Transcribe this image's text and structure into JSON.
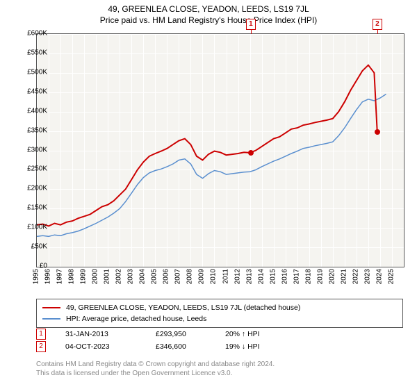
{
  "title_line1": "49, GREENLEA CLOSE, YEADON, LEEDS, LS19 7JL",
  "title_line2": "Price paid vs. HM Land Registry's House Price Index (HPI)",
  "chart": {
    "background": "#f5f4f0",
    "grid_color": "#ffffff",
    "border_color": "#555555",
    "ylim": [
      0,
      600000
    ],
    "ytick_step": 50000,
    "yticks": [
      "£0",
      "£50K",
      "£100K",
      "£150K",
      "£200K",
      "£250K",
      "£300K",
      "£350K",
      "£400K",
      "£450K",
      "£500K",
      "£550K",
      "£600K"
    ],
    "xlim": [
      1995,
      2026
    ],
    "xticks": [
      "1995",
      "1996",
      "1997",
      "1998",
      "1999",
      "2000",
      "2001",
      "2002",
      "2003",
      "2004",
      "2005",
      "2006",
      "2007",
      "2008",
      "2009",
      "2010",
      "2011",
      "2012",
      "2013",
      "2014",
      "2015",
      "2016",
      "2017",
      "2018",
      "2019",
      "2020",
      "2021",
      "2022",
      "2023",
      "2024",
      "2025"
    ],
    "series": {
      "red": {
        "color": "#cc0000",
        "width": 2,
        "points": [
          [
            1995.0,
            108000
          ],
          [
            1995.5,
            110000
          ],
          [
            1996.0,
            105000
          ],
          [
            1996.5,
            112000
          ],
          [
            1997.0,
            108000
          ],
          [
            1997.5,
            115000
          ],
          [
            1998.0,
            118000
          ],
          [
            1998.5,
            125000
          ],
          [
            1999.0,
            130000
          ],
          [
            1999.5,
            135000
          ],
          [
            2000.0,
            145000
          ],
          [
            2000.5,
            155000
          ],
          [
            2001.0,
            160000
          ],
          [
            2001.5,
            170000
          ],
          [
            2002.0,
            185000
          ],
          [
            2002.5,
            200000
          ],
          [
            2003.0,
            225000
          ],
          [
            2003.5,
            250000
          ],
          [
            2004.0,
            270000
          ],
          [
            2004.5,
            285000
          ],
          [
            2005.0,
            292000
          ],
          [
            2005.5,
            298000
          ],
          [
            2006.0,
            305000
          ],
          [
            2006.5,
            315000
          ],
          [
            2007.0,
            325000
          ],
          [
            2007.5,
            330000
          ],
          [
            2008.0,
            315000
          ],
          [
            2008.5,
            285000
          ],
          [
            2009.0,
            275000
          ],
          [
            2009.5,
            290000
          ],
          [
            2010.0,
            298000
          ],
          [
            2010.5,
            295000
          ],
          [
            2011.0,
            288000
          ],
          [
            2011.5,
            290000
          ],
          [
            2012.0,
            292000
          ],
          [
            2012.5,
            295000
          ],
          [
            2013.0,
            293950
          ],
          [
            2013.5,
            300000
          ],
          [
            2014.0,
            310000
          ],
          [
            2014.5,
            320000
          ],
          [
            2015.0,
            330000
          ],
          [
            2015.5,
            335000
          ],
          [
            2016.0,
            345000
          ],
          [
            2016.5,
            355000
          ],
          [
            2017.0,
            358000
          ],
          [
            2017.5,
            365000
          ],
          [
            2018.0,
            368000
          ],
          [
            2018.5,
            372000
          ],
          [
            2019.0,
            375000
          ],
          [
            2019.5,
            378000
          ],
          [
            2020.0,
            382000
          ],
          [
            2020.5,
            400000
          ],
          [
            2021.0,
            425000
          ],
          [
            2021.5,
            455000
          ],
          [
            2022.0,
            480000
          ],
          [
            2022.5,
            505000
          ],
          [
            2023.0,
            520000
          ],
          [
            2023.5,
            500000
          ],
          [
            2023.76,
            346600
          ]
        ]
      },
      "blue": {
        "color": "#5a8fcf",
        "width": 1.5,
        "points": [
          [
            1995.0,
            78000
          ],
          [
            1995.5,
            80000
          ],
          [
            1996.0,
            78000
          ],
          [
            1996.5,
            82000
          ],
          [
            1997.0,
            80000
          ],
          [
            1997.5,
            85000
          ],
          [
            1998.0,
            88000
          ],
          [
            1998.5,
            92000
          ],
          [
            1999.0,
            98000
          ],
          [
            1999.5,
            105000
          ],
          [
            2000.0,
            112000
          ],
          [
            2000.5,
            120000
          ],
          [
            2001.0,
            128000
          ],
          [
            2001.5,
            138000
          ],
          [
            2002.0,
            150000
          ],
          [
            2002.5,
            168000
          ],
          [
            2003.0,
            190000
          ],
          [
            2003.5,
            212000
          ],
          [
            2004.0,
            230000
          ],
          [
            2004.5,
            242000
          ],
          [
            2005.0,
            248000
          ],
          [
            2005.5,
            252000
          ],
          [
            2006.0,
            258000
          ],
          [
            2006.5,
            265000
          ],
          [
            2007.0,
            275000
          ],
          [
            2007.5,
            278000
          ],
          [
            2008.0,
            265000
          ],
          [
            2008.5,
            238000
          ],
          [
            2009.0,
            228000
          ],
          [
            2009.5,
            240000
          ],
          [
            2010.0,
            248000
          ],
          [
            2010.5,
            245000
          ],
          [
            2011.0,
            238000
          ],
          [
            2011.5,
            240000
          ],
          [
            2012.0,
            242000
          ],
          [
            2012.5,
            244000
          ],
          [
            2013.0,
            245000
          ],
          [
            2013.5,
            250000
          ],
          [
            2014.0,
            258000
          ],
          [
            2014.5,
            265000
          ],
          [
            2015.0,
            272000
          ],
          [
            2015.5,
            278000
          ],
          [
            2016.0,
            285000
          ],
          [
            2016.5,
            292000
          ],
          [
            2017.0,
            298000
          ],
          [
            2017.5,
            305000
          ],
          [
            2018.0,
            308000
          ],
          [
            2018.5,
            312000
          ],
          [
            2019.0,
            315000
          ],
          [
            2019.5,
            318000
          ],
          [
            2020.0,
            322000
          ],
          [
            2020.5,
            338000
          ],
          [
            2021.0,
            358000
          ],
          [
            2021.5,
            382000
          ],
          [
            2022.0,
            405000
          ],
          [
            2022.5,
            425000
          ],
          [
            2023.0,
            432000
          ],
          [
            2023.5,
            428000
          ],
          [
            2024.0,
            435000
          ],
          [
            2024.5,
            445000
          ]
        ]
      }
    },
    "sale_markers": [
      {
        "n": "1",
        "x": 2013.08,
        "y": 293950
      },
      {
        "n": "2",
        "x": 2023.76,
        "y": 346600
      }
    ]
  },
  "legend": {
    "red_label": "49, GREENLEA CLOSE, YEADON, LEEDS, LS19 7JL (detached house)",
    "blue_label": "HPI: Average price, detached house, Leeds"
  },
  "sales": [
    {
      "n": "1",
      "date": "31-JAN-2013",
      "price": "£293,950",
      "pct": "20% ↑ HPI"
    },
    {
      "n": "2",
      "date": "04-OCT-2023",
      "price": "£346,600",
      "pct": "19% ↓ HPI"
    }
  ],
  "footer_line1": "Contains HM Land Registry data © Crown copyright and database right 2024.",
  "footer_line2": "This data is licensed under the Open Government Licence v3.0."
}
